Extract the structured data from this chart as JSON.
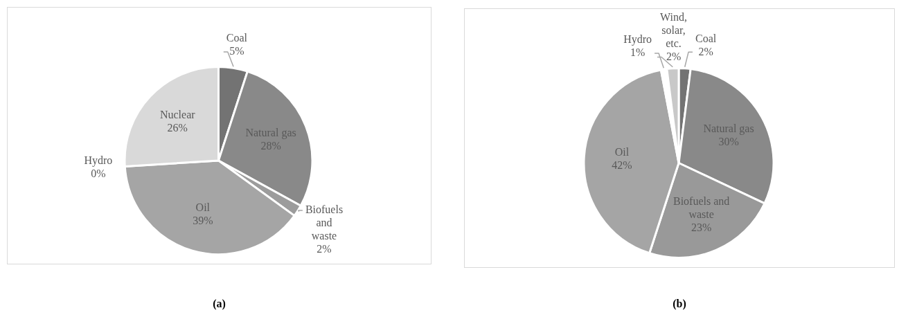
{
  "chart_data": [
    {
      "type": "pie",
      "categories": [
        "Coal",
        "Natural gas",
        "Biofuels and waste",
        "Oil",
        "Hydro",
        "Nuclear"
      ],
      "values": [
        5,
        28,
        2,
        39,
        0,
        26
      ],
      "value_labels": [
        "5%",
        "28%",
        "2%",
        "39%",
        "0%",
        "26%"
      ],
      "colors": [
        "#737373",
        "#898989",
        "#9c9c9c",
        "#a5a5a5",
        "#c8c8c8",
        "#d9d9d9"
      ],
      "annotations": [
        "(a)"
      ]
    },
    {
      "type": "pie",
      "categories": [
        "Coal",
        "Natural gas",
        "Biofuels and waste",
        "Oil",
        "Hydro",
        "Wind, solar, etc."
      ],
      "values": [
        2,
        30,
        23,
        42,
        1,
        2
      ],
      "value_labels": [
        "2%",
        "30%",
        "23%",
        "42%",
        "1%",
        "2%"
      ],
      "colors": [
        "#737373",
        "#898989",
        "#999999",
        "#a5a5a5",
        "#ffffff",
        "#c8c8c8"
      ],
      "annotations": [
        "(b)"
      ]
    }
  ]
}
